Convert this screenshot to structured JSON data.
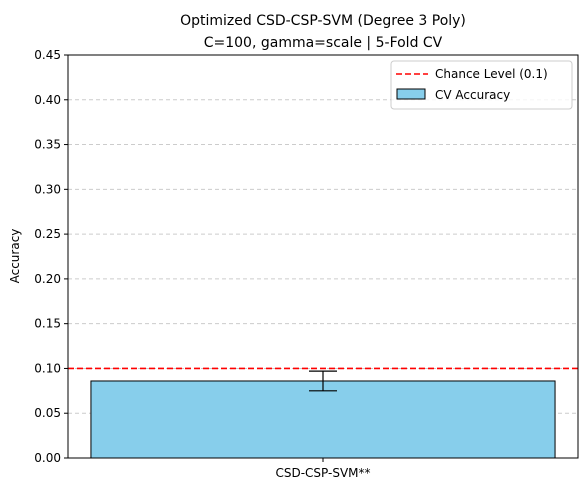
{
  "chart_data": {
    "type": "bar",
    "title_lines": [
      "Optimized CSD-CSP-SVM (Degree 3 Poly)",
      "C=100, gamma=scale | 5-Fold CV"
    ],
    "xlabel": "",
    "ylabel": "Accuracy",
    "categories": [
      "CSD-CSP-SVM**"
    ],
    "series": [
      {
        "name": "CV Accuracy",
        "values": [
          0.086
        ],
        "errors": [
          0.011
        ],
        "color": "#87ceeb",
        "edge": "#000000"
      }
    ],
    "reference_line": {
      "name": "Chance Level (0.1)",
      "value": 0.1,
      "color": "#ff0000",
      "style": "dashed"
    },
    "ylim": [
      0,
      0.45
    ],
    "yticks": [
      0.0,
      0.05,
      0.1,
      0.15,
      0.2,
      0.25,
      0.3,
      0.35,
      0.4,
      0.45
    ],
    "ytick_labels": [
      "0.00",
      "0.05",
      "0.10",
      "0.15",
      "0.20",
      "0.25",
      "0.30",
      "0.35",
      "0.40",
      "0.45"
    ],
    "grid": {
      "axis": "y",
      "style": "dashed"
    },
    "legend_position": "top-right"
  }
}
